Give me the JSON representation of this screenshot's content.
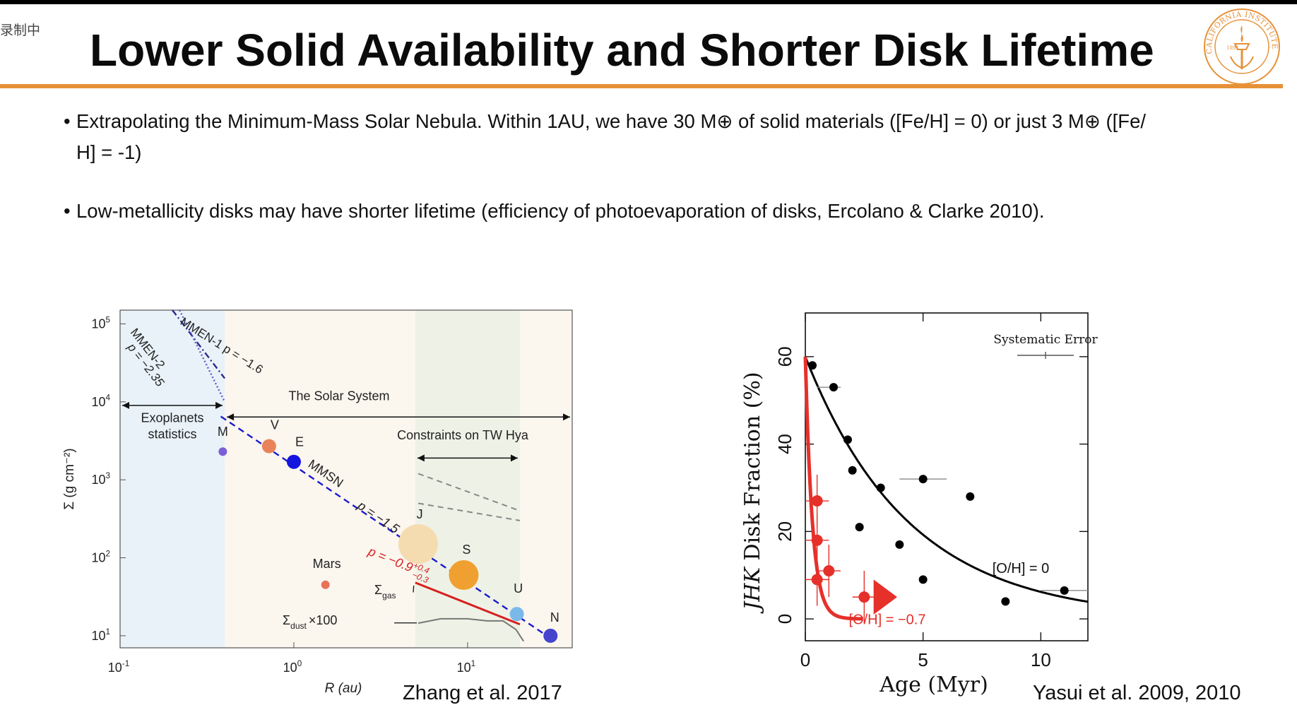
{
  "overlay": {
    "recording_label": "录制中"
  },
  "slide": {
    "title": "Lower Solid Availability and Shorter Disk Lifetime",
    "bullets": [
      {
        "marker": "•",
        "text": "Extrapolating the Minimum-Mass Solar Nebula. Within 1AU, we have 30 M⊕ of solid materials ([Fe/H] = 0) or just 3 M⊕ ([Fe/",
        "text2": "H] = -1)"
      },
      {
        "marker": "•",
        "text": "Low-metallicity disks may have shorter lifetime (efficiency of photoevaporation of disks, Ercolano & Clarke 2010)."
      }
    ],
    "captions": {
      "left": "Zhang et al. 2017",
      "right": "Yasui et al. 2009, 2010"
    },
    "seal": {
      "text": "CALIFORNIA INSTITUTE OF TECHNOLOGY",
      "year": "1891",
      "color": "#e69138"
    },
    "accent_color": "#e69138"
  },
  "chart_data": [
    {
      "type": "scatter",
      "log_x": true,
      "log_y": true,
      "xlabel": "R (au)",
      "ylabel": "Σ (g cm⁻²)",
      "xlim": [
        0.1,
        40
      ],
      "ylim": [
        7,
        150000
      ],
      "x_ticks": [
        {
          "base": "10",
          "exp": "-1"
        },
        {
          "base": "10",
          "exp": "0"
        },
        {
          "base": "10",
          "exp": "1"
        }
      ],
      "y_ticks": [
        {
          "base": "10",
          "exp": "1"
        },
        {
          "base": "10",
          "exp": "2"
        },
        {
          "base": "10",
          "exp": "3"
        },
        {
          "base": "10",
          "exp": "4"
        },
        {
          "base": "10",
          "exp": "5"
        }
      ],
      "planets": [
        {
          "name": "M",
          "x": 0.39,
          "y": 2300,
          "color": "#7b5fd6",
          "size": "small"
        },
        {
          "name": "V",
          "x": 0.72,
          "y": 2700,
          "color": "#e8835a",
          "size": "medium"
        },
        {
          "name": "E",
          "x": 1.0,
          "y": 1700,
          "color": "#1515e0",
          "size": "medium"
        },
        {
          "name": "Mars",
          "x": 1.52,
          "y": 45,
          "color": "#e8735a",
          "size": "small"
        },
        {
          "name": "J",
          "x": 5.2,
          "y": 150,
          "color": "#f5dcb0",
          "size": "huge"
        },
        {
          "name": "S",
          "x": 9.5,
          "y": 60,
          "color": "#f0a030",
          "size": "large"
        },
        {
          "name": "U",
          "x": 19.2,
          "y": 19,
          "color": "#7ab8ea",
          "size": "medium"
        },
        {
          "name": "N",
          "x": 30,
          "y": 10,
          "color": "#4444cc",
          "size": "medium"
        }
      ],
      "lines": [
        {
          "name": "MMSN",
          "label": "MMSN",
          "slope_label": "p = −1.5",
          "points": [
            [
              0.38,
              6500
            ],
            [
              30,
              9.3
            ]
          ],
          "color": "#1a1ad0",
          "style": "dashed"
        },
        {
          "name": "Σgas",
          "label": "p = −0.9",
          "exp_hi": "+0.4",
          "exp_lo": "−0.3",
          "points": [
            [
              5,
              48
            ],
            [
              20,
              14
            ]
          ],
          "color": "#d62020",
          "style": "solid"
        },
        {
          "name": "MMEN-1",
          "label": "MMEN-1 p = −1.6",
          "points": [
            [
              0.2,
              150000
            ],
            [
              0.4,
              20000
            ]
          ],
          "color": "#2a2a8a",
          "style": "dashdot"
        },
        {
          "name": "MMEN-2",
          "label": "MMEN-2",
          "slope_label": "p = −2.35",
          "points": [
            [
              0.22,
              150000
            ],
            [
              0.4,
              10000
            ]
          ],
          "color": "#5a5ad0",
          "style": "dotted"
        }
      ],
      "regions": [
        {
          "label": "Exoplanets",
          "label2": "statistics",
          "x": [
            0.1,
            0.4
          ],
          "color": "#e8f2f8"
        },
        {
          "label": "The Solar System",
          "x": [
            0.4,
            40
          ],
          "color": "#fbf6ee"
        },
        {
          "label": "Constraints on TW Hya",
          "x": [
            5,
            20
          ],
          "color": "#eef2e6"
        }
      ],
      "annotations": {
        "sigma_gas": "Σ",
        "sigma_gas_sub": "gas",
        "sigma_dust": "Σ",
        "sigma_dust_sub": "dust",
        "sigma_dust_mult": "×100"
      }
    },
    {
      "type": "scatter",
      "xlabel": "Age (Myr)",
      "xlabel_age": "Age",
      "xlabel_unit": "(Myr)",
      "ylabel": "JHK Disk Fraction (%)",
      "ylabel_italic": "JHK",
      "ylabel_rest": "Disk Fraction (%)",
      "xlim": [
        0,
        12
      ],
      "ylim": [
        -5,
        70
      ],
      "x_ticks": [
        0,
        5,
        10
      ],
      "y_ticks": [
        0,
        20,
        40,
        60
      ],
      "legend_note": "Systematic Error",
      "series": [
        {
          "name": "[O/H] = 0",
          "color": "#000000",
          "points": [
            [
              0.3,
              58
            ],
            [
              1.2,
              53
            ],
            [
              1.8,
              41
            ],
            [
              2.0,
              34
            ],
            [
              2.3,
              21
            ],
            [
              3.2,
              30
            ],
            [
              4.0,
              17
            ],
            [
              5.0,
              32
            ],
            [
              5.0,
              9
            ],
            [
              7.0,
              28
            ],
            [
              8.5,
              4
            ],
            [
              11.0,
              6.5
            ]
          ],
          "curve": {
            "form": "exponential",
            "y0": 60,
            "tau": 4.4
          }
        },
        {
          "name": "[O/H] = −0.7",
          "color": "#e6302a",
          "points": [
            [
              0.5,
              27
            ],
            [
              0.5,
              18
            ],
            [
              0.5,
              9
            ],
            [
              1.0,
              11
            ],
            [
              2.5,
              5
            ]
          ],
          "curve": {
            "form": "exponential",
            "y0": 60,
            "tau": 0.3
          }
        }
      ]
    }
  ]
}
